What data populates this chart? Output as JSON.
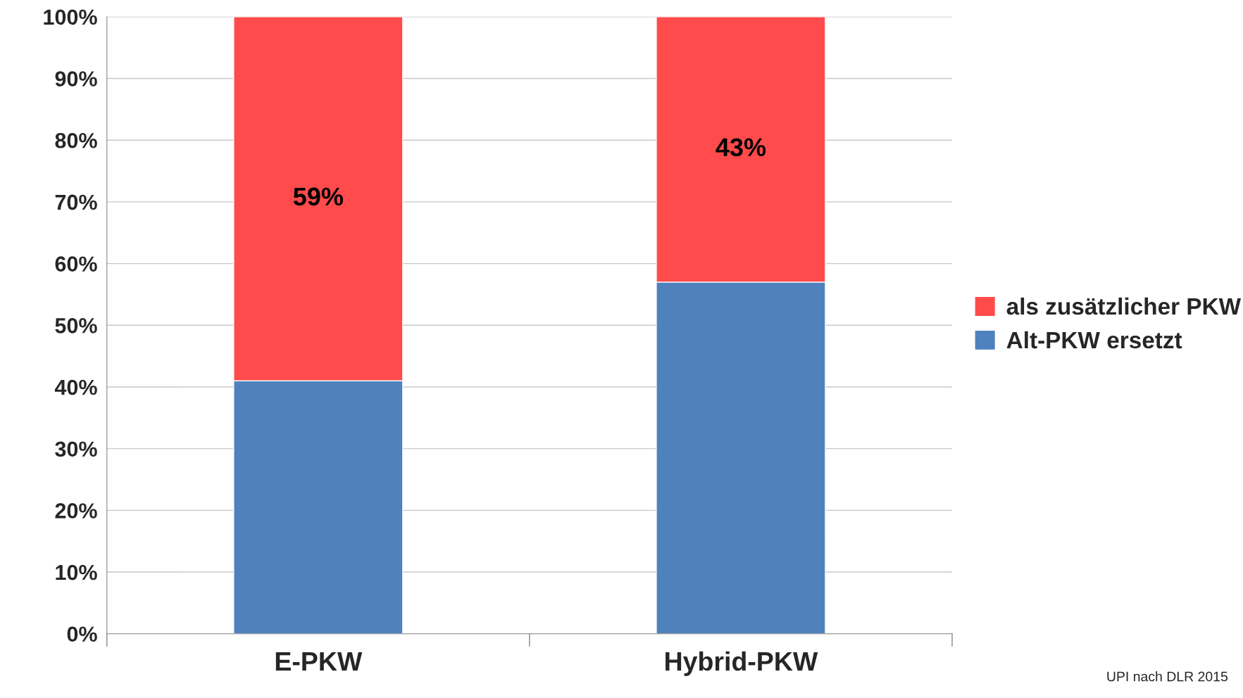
{
  "chart_data": {
    "type": "bar",
    "stacked": true,
    "categories": [
      "E-PKW",
      "Hybrid-PKW"
    ],
    "series": [
      {
        "name": "Alt-PKW ersetzt",
        "color": "#4f81bd",
        "values": [
          41,
          57
        ]
      },
      {
        "name": "als zusätzlicher PKW",
        "color": "#ff4b4b",
        "values": [
          59,
          43
        ],
        "value_labels": [
          "59%",
          "43%"
        ]
      }
    ],
    "ylim": [
      0,
      100
    ],
    "yticks": [
      {
        "value": 0,
        "label": "0%"
      },
      {
        "value": 10,
        "label": "10%"
      },
      {
        "value": 20,
        "label": "20%"
      },
      {
        "value": 30,
        "label": "30%"
      },
      {
        "value": 40,
        "label": "40%"
      },
      {
        "value": 50,
        "label": "50%"
      },
      {
        "value": 60,
        "label": "60%"
      },
      {
        "value": 70,
        "label": "70%"
      },
      {
        "value": 80,
        "label": "80%"
      },
      {
        "value": 90,
        "label": "90%"
      },
      {
        "value": 100,
        "label": "100%"
      }
    ],
    "grid": "y",
    "legend": "right",
    "annotations": [
      "UPI nach DLR 2015"
    ]
  }
}
